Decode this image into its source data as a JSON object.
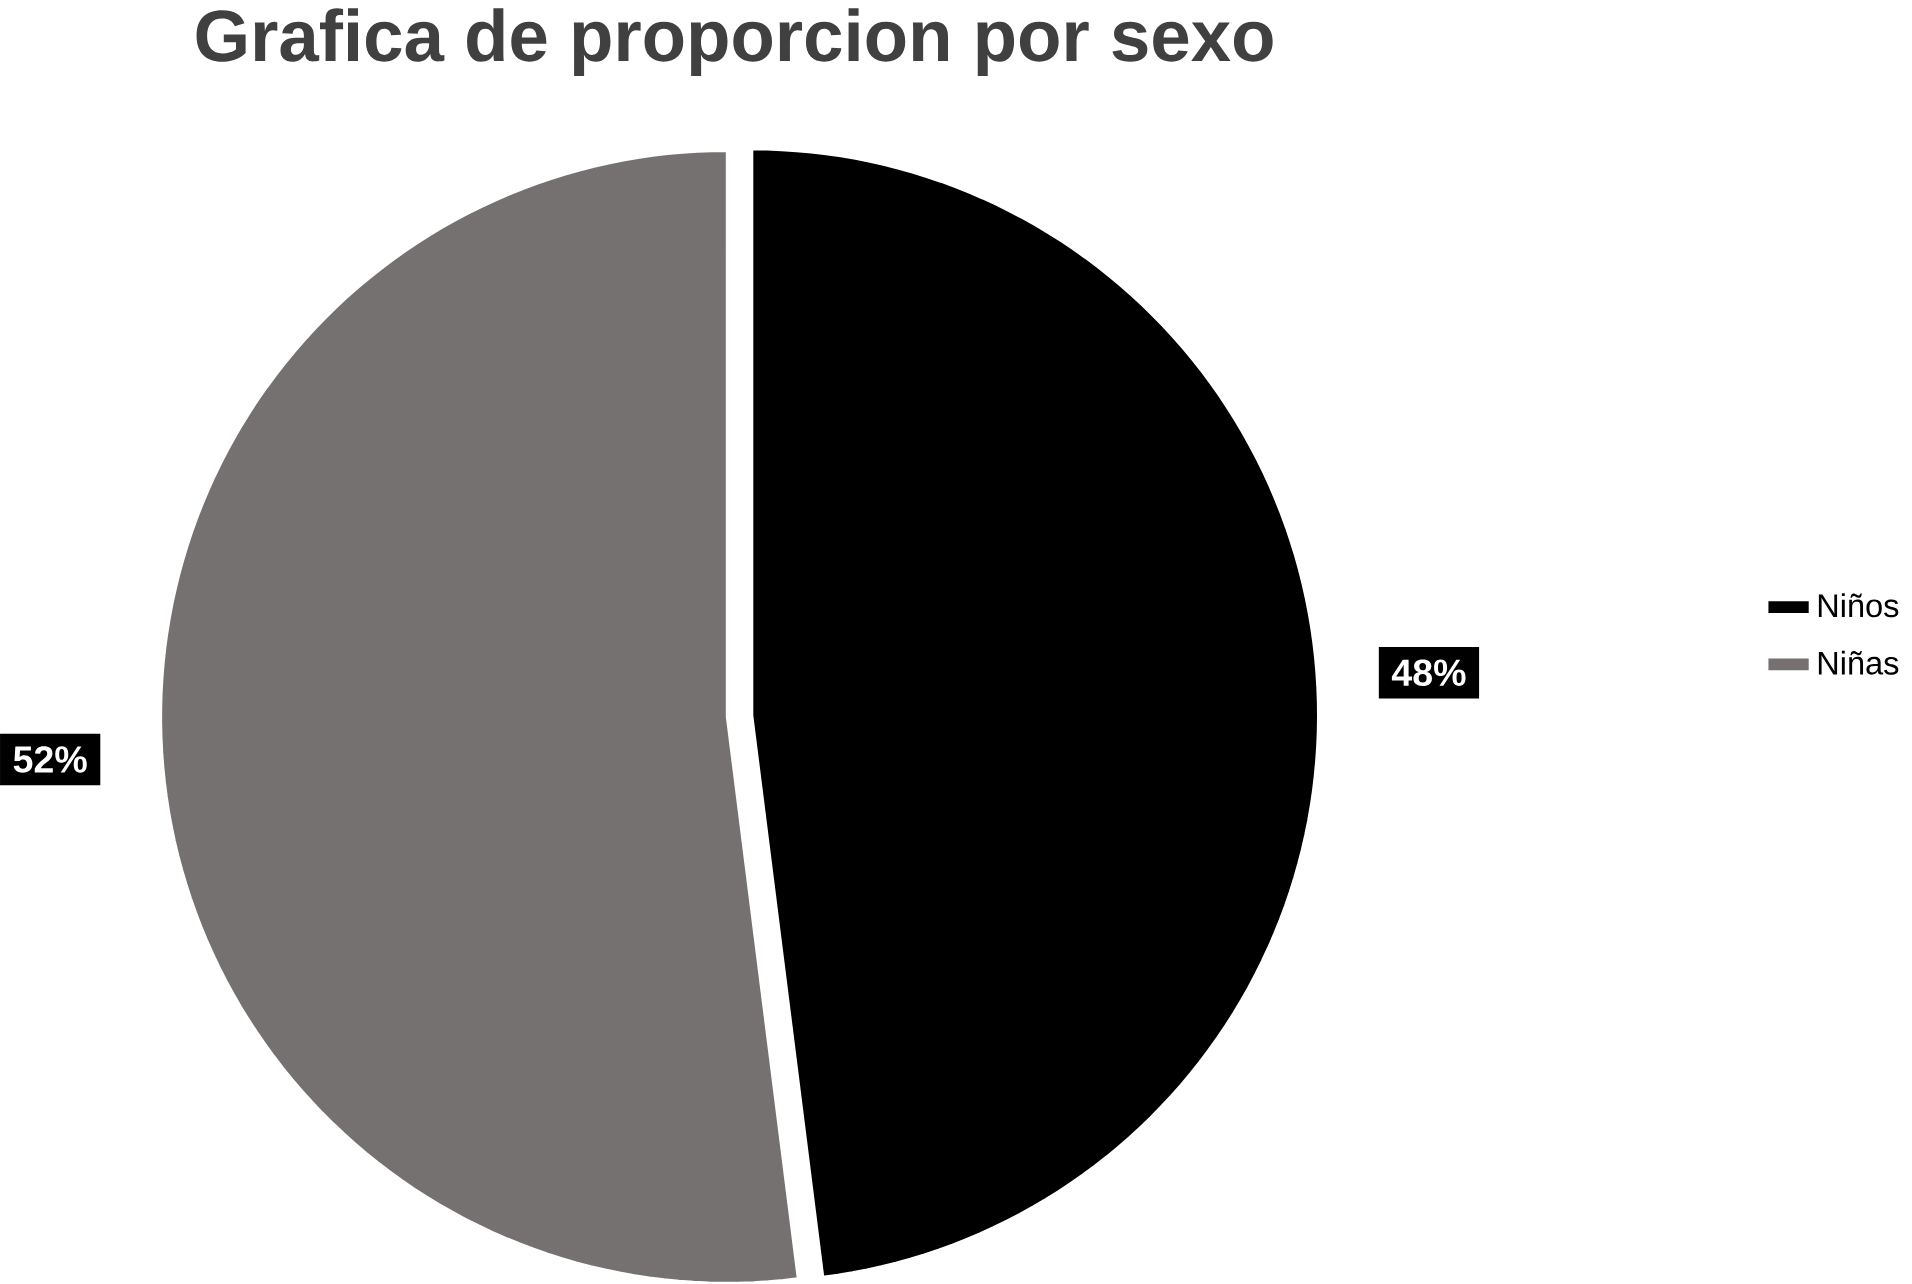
{
  "chart_data": {
    "type": "pie",
    "title": "Grafica de proporcion por sexo",
    "categories": [
      "Niños",
      "Niñas"
    ],
    "values": [
      48,
      52
    ],
    "colors": [
      "#000000",
      "#767171"
    ],
    "value_labels": [
      "48%",
      "52%"
    ],
    "legend": "right"
  }
}
